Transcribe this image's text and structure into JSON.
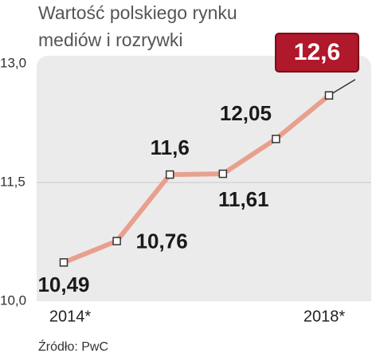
{
  "chart_data": {
    "type": "line",
    "title": "Wartość polskiego rynku mediów i rozrywki",
    "source": "Źródło: PwC",
    "categories": [
      "2014*",
      null,
      null,
      null,
      null,
      "2018*"
    ],
    "series": [
      {
        "name": "Wartość",
        "color": "#e8a08e",
        "values": [
          10.49,
          10.76,
          11.6,
          11.61,
          12.05,
          12.6
        ],
        "value_labels": [
          "10,49",
          "10,76",
          "11,6",
          "11,61",
          "12,05",
          "12,6"
        ]
      }
    ],
    "ylim": [
      10,
      13
    ],
    "yticks": [
      {
        "value": 10,
        "label": "10,0"
      },
      {
        "value": 11.5,
        "label": "11,5"
      },
      {
        "value": 13,
        "label": "13,0"
      }
    ],
    "grid": true,
    "highlight_color": "#b0182b"
  }
}
